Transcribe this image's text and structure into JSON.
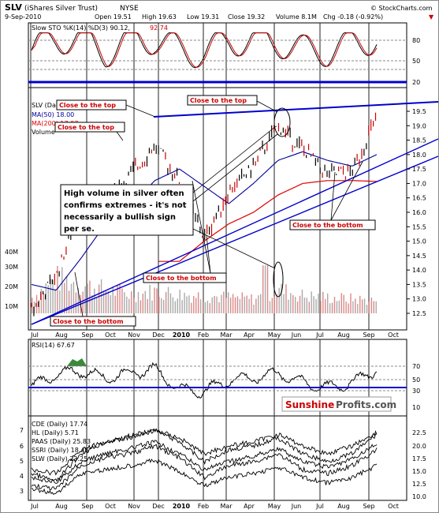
{
  "header": {
    "ticker": "SLV",
    "name": "(iShares Silver Trust)",
    "exchange": "NYSE",
    "date": "9-Sep-2010",
    "open": "Open 19.51",
    "high": "High 19.63",
    "low": "Low 19.31",
    "close": "Close 19.32",
    "volume": "Volume 8.1M",
    "chg": "Chg -0.18 (-0.92%)",
    "source": "© StockCharts.com",
    "chg_arrow": "▼"
  },
  "panels": {
    "sto": {
      "label": "Slow STO %K(14) %D(3) 90.12,",
      "label_red": "92.74",
      "ticks": [
        "80",
        "50",
        "20"
      ]
    },
    "price": {
      "legend": [
        "SLV (Daily)",
        "MA(50) 18.00",
        "MA(200) 17.07",
        "Volume"
      ],
      "ticks": [
        "19.5",
        "19.0",
        "18.5",
        "18.0",
        "17.5",
        "17.0",
        "16.5",
        "16.0",
        "15.5",
        "15.0",
        "14.5",
        "14.0",
        "13.5",
        "13.0",
        "12.5"
      ],
      "vol_ticks": [
        "40M",
        "30M",
        "20M",
        "10M"
      ]
    },
    "rsi": {
      "label": "RSI(14) 67.67",
      "ticks": [
        "70",
        "50",
        "30",
        "10"
      ]
    },
    "stocks": {
      "legend": [
        "CDE (Daily) 17.74",
        "HL (Daily) 5.71",
        "PAAS (Daily) 25.83",
        "SSRI (Daily) 18.45",
        "SLW (Daily) 23.25"
      ],
      "left_ticks": [
        "7",
        "6",
        "5",
        "4",
        "3"
      ],
      "right_ticks": [
        "22.5",
        "20.0",
        "17.5",
        "15.0",
        "12.5",
        "10.0"
      ]
    }
  },
  "x_axis": {
    "months_top": [
      "Jul",
      "Aug",
      "Sep",
      "Oct",
      "Nov",
      "Dec",
      "2010",
      "Feb",
      "Mar",
      "Apr",
      "May",
      "Jun",
      "Jul",
      "Aug",
      "Sep",
      "Oct"
    ],
    "months_bottom": [
      "Jul",
      "Aug",
      "Sep",
      "Oct",
      "Nov",
      "Dec",
      "2010",
      "Feb",
      "Mar",
      "Apr",
      "May",
      "Jun",
      "Jul",
      "Aug",
      "Sep",
      "Oct"
    ]
  },
  "annotations": {
    "top1": "Close to the top",
    "top2": "Close to the top",
    "top3": "Close to the top",
    "bottom1": "Close to the bottom",
    "bottom2": "Close to the bottom",
    "bottom3": "Close to the bottom",
    "note_line1": "High volume in silver often",
    "note_line2": "confirms extremes - it's not",
    "note_line3": "necessarily a bullish sign",
    "note_line4": "per se."
  },
  "logo": {
    "part1": "Sunshine",
    "part2": "Profits.com"
  },
  "colors": {
    "red": "#cc0000",
    "blue": "#0000cc",
    "ma200": "#dd0000",
    "ma50": "#000099",
    "volume": "#b8b8b8",
    "logo_red": "#cc0000",
    "logo_gray": "#555555",
    "rsi_fill": "#3a8a3a"
  },
  "chart_data": {
    "type": "line",
    "title": "SLV (iShares Silver Trust) NYSE",
    "x": [
      "2009-07",
      "2009-08",
      "2009-09",
      "2009-10",
      "2009-11",
      "2009-12",
      "2010-01",
      "2010-02",
      "2010-03",
      "2010-04",
      "2010-05",
      "2010-06",
      "2010-07",
      "2010-08",
      "2010-09"
    ],
    "series": [
      {
        "name": "SLV (Daily)",
        "values": [
          12.6,
          13.8,
          16.2,
          16.4,
          17.3,
          18.3,
          17.1,
          15.1,
          16.7,
          17.6,
          19.0,
          18.2,
          17.3,
          17.4,
          19.3
        ]
      },
      {
        "name": "MA(50) 18.00",
        "values": [
          13.5,
          13.3,
          14.4,
          15.6,
          16.2,
          17.1,
          17.5,
          16.9,
          16.3,
          17.0,
          17.8,
          18.1,
          17.8,
          17.6,
          18.0
        ]
      },
      {
        "name": "MA(200) 17.07",
        "values": [
          null,
          null,
          null,
          null,
          null,
          null,
          14.3,
          15.0,
          15.6,
          16.0,
          16.6,
          17.0,
          17.1,
          17.1,
          17.07
        ]
      }
    ],
    "sto_k": [
      30,
      85,
      90,
      20,
      80,
      85,
      30,
      15,
      75,
      80,
      70,
      30,
      25,
      60,
      90
    ],
    "rsi": [
      42,
      60,
      65,
      55,
      62,
      68,
      38,
      35,
      52,
      55,
      62,
      48,
      40,
      48,
      68
    ],
    "volume_m": [
      10,
      22,
      18,
      15,
      12,
      14,
      12,
      11,
      10,
      9,
      15,
      11,
      10,
      9,
      8
    ],
    "ylim": [
      12.2,
      19.8
    ],
    "yticks": [
      12.5,
      13.0,
      13.5,
      14.0,
      14.5,
      15.0,
      15.5,
      16.0,
      16.5,
      17.0,
      17.5,
      18.0,
      18.5,
      19.0,
      19.5
    ]
  }
}
